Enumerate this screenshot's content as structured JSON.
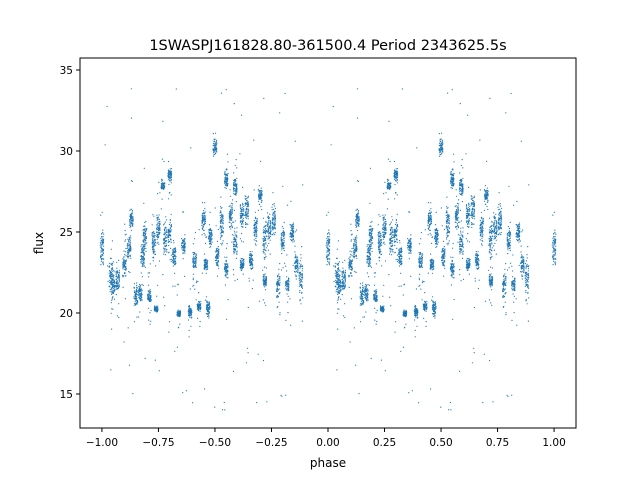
{
  "chart_data": {
    "type": "scatter",
    "title": "1SWASPJ161828.80-361500.4 Period 2343625.5s",
    "xlabel": "phase",
    "ylabel": "flux",
    "xlim": [
      -1.097,
      1.097
    ],
    "ylim": [
      12.9,
      35.74
    ],
    "xticks": [
      -1.0,
      -0.75,
      -0.5,
      -0.25,
      0.0,
      0.25,
      0.5,
      0.75,
      1.0
    ],
    "xtick_labels": [
      "−1.00",
      "−0.75",
      "−0.50",
      "−0.25",
      "0.00",
      "0.25",
      "0.50",
      "0.75",
      "1.00"
    ],
    "yticks": [
      15,
      20,
      25,
      30,
      35
    ],
    "ytick_labels": [
      "15",
      "20",
      "25",
      "30",
      "35"
    ],
    "grid": false,
    "color": "#1f77b4",
    "note_series": "phase-folded light curve drawn twice (phase p and p+1); clusters give [phase, flux_low, flux_high]",
    "clusters": [
      [
        0.0,
        22.5,
        25.5
      ],
      [
        0.04,
        21,
        23.5
      ],
      [
        0.05,
        20.5,
        23
      ],
      [
        0.07,
        21,
        23
      ],
      [
        0.1,
        22,
        24
      ],
      [
        0.12,
        23,
        25
      ],
      [
        0.13,
        25,
        26.5
      ],
      [
        0.15,
        20,
        22
      ],
      [
        0.17,
        20.5,
        22
      ],
      [
        0.18,
        22.5,
        24.5
      ],
      [
        0.19,
        23.5,
        26
      ],
      [
        0.21,
        20.5,
        21.5
      ],
      [
        0.23,
        23,
        25.5
      ],
      [
        0.24,
        20,
        20.5
      ],
      [
        0.25,
        24,
        26.5
      ],
      [
        0.27,
        27.5,
        28.3
      ],
      [
        0.3,
        28,
        29
      ],
      [
        0.28,
        23,
        26
      ],
      [
        0.3,
        24,
        26
      ],
      [
        0.32,
        22.5,
        24.5
      ],
      [
        0.34,
        19.6,
        20.3
      ],
      [
        0.36,
        23.5,
        25
      ],
      [
        0.39,
        19.6,
        20.5
      ],
      [
        0.41,
        22.5,
        24
      ],
      [
        0.43,
        20,
        20.8
      ],
      [
        0.45,
        25,
        26.5
      ],
      [
        0.46,
        22.5,
        23.5
      ],
      [
        0.47,
        19.5,
        21
      ],
      [
        0.48,
        24,
        25.5
      ],
      [
        0.5,
        29.5,
        31
      ],
      [
        0.51,
        22.5,
        24.5
      ],
      [
        0.53,
        24,
        27
      ],
      [
        0.55,
        27.5,
        29
      ],
      [
        0.55,
        22,
        23.5
      ],
      [
        0.57,
        25,
        27
      ],
      [
        0.59,
        27,
        28.5
      ],
      [
        0.59,
        23,
        25.5
      ],
      [
        0.62,
        25,
        27
      ],
      [
        0.62,
        22.5,
        23.5
      ],
      [
        0.64,
        25,
        28
      ],
      [
        0.66,
        22.5,
        24
      ],
      [
        0.68,
        24,
        26.5
      ],
      [
        0.7,
        26.5,
        28
      ],
      [
        0.72,
        23,
        26
      ],
      [
        0.72,
        21.5,
        22.5
      ],
      [
        0.74,
        24,
        26.5
      ],
      [
        0.76,
        24.5,
        27
      ],
      [
        0.78,
        20.5,
        23
      ],
      [
        0.8,
        23.5,
        25.5
      ],
      [
        0.82,
        21,
        22.5
      ],
      [
        0.84,
        24,
        26
      ],
      [
        0.86,
        22,
        24
      ],
      [
        0.88,
        21,
        23.5
      ]
    ]
  }
}
